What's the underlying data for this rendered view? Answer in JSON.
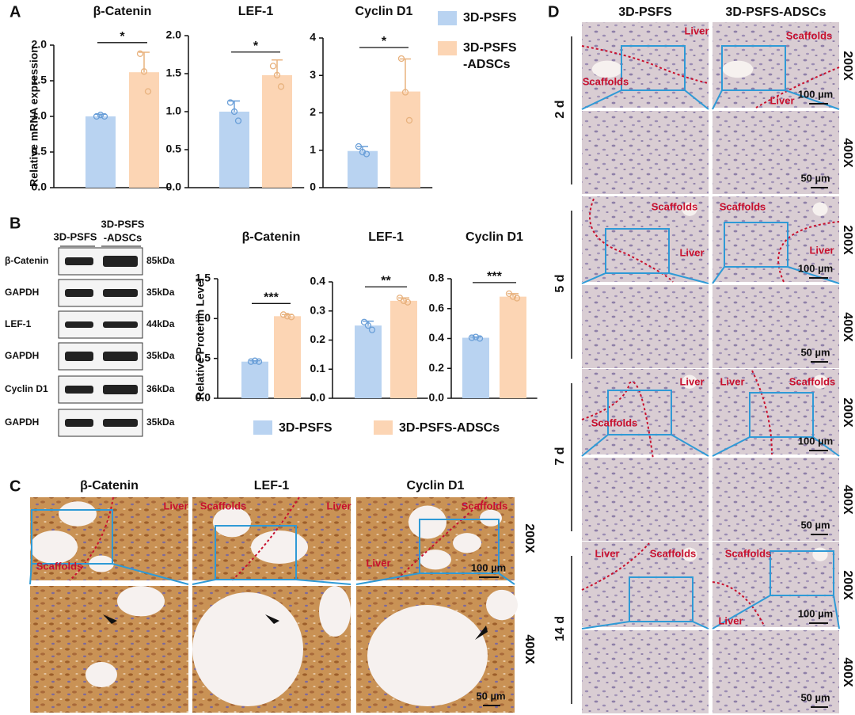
{
  "panel_labels": [
    "A",
    "B",
    "C",
    "D"
  ],
  "chart_data": [
    {
      "type": "bar",
      "title": "β-Catenin",
      "ylabel": "Relative mRNA expression",
      "values": [
        1.0,
        1.62
      ],
      "errors": [
        0.03,
        0.28
      ],
      "points": [
        [
          1.0,
          1.02,
          1.0
        ],
        [
          1.88,
          1.63,
          1.35
        ]
      ],
      "colors": [
        "#b9d3f1",
        "#fcd5b4"
      ],
      "point_colors": [
        "#6a9fd8",
        "#e8b27e"
      ],
      "ylim": [
        0,
        2.0
      ],
      "yticks": [
        {
          "value": 0,
          "label": "0.0"
        },
        0.5,
        {
          "value": 1,
          "label": "1.0"
        },
        1.5,
        {
          "value": 2,
          "label": "2.0"
        }
      ],
      "significance": "*"
    },
    {
      "type": "bar",
      "title": "LEF-1",
      "values": [
        1.0,
        1.48
      ],
      "errors": [
        0.14,
        0.2
      ],
      "points": [
        [
          1.12,
          1.0,
          0.88
        ],
        [
          1.6,
          1.48,
          1.33
        ]
      ],
      "colors": [
        "#b9d3f1",
        "#fcd5b4"
      ],
      "point_colors": [
        "#6a9fd8",
        "#e8b27e"
      ],
      "ylim": [
        0,
        2.0
      ],
      "yticks": [
        {
          "value": 0,
          "label": "0.0"
        },
        0.5,
        {
          "value": 1,
          "label": "1.0"
        },
        1.5,
        {
          "value": 2,
          "label": "2.0"
        }
      ],
      "significance": "*"
    },
    {
      "type": "bar",
      "title": "Cyclin D1",
      "values": [
        0.98,
        2.57
      ],
      "errors": [
        0.12,
        0.87
      ],
      "points": [
        [
          1.1,
          0.95,
          0.9
        ],
        [
          3.45,
          2.55,
          1.8
        ]
      ],
      "colors": [
        "#b9d3f1",
        "#fcd5b4"
      ],
      "point_colors": [
        "#6a9fd8",
        "#e8b27e"
      ],
      "ylim": [
        0,
        4
      ],
      "yticks": [
        0,
        1,
        2,
        3,
        4
      ],
      "significance": "*"
    },
    {
      "type": "bar",
      "title": "β-Catenin",
      "ylabel": "Relative Protenin Level",
      "values": [
        0.46,
        1.03
      ],
      "errors": [
        0.01,
        0.02
      ],
      "points": [
        [
          0.46,
          0.47,
          0.46
        ],
        [
          1.05,
          1.03,
          1.02
        ]
      ],
      "colors": [
        "#b9d3f1",
        "#fcd5b4"
      ],
      "point_colors": [
        "#6a9fd8",
        "#e8b27e"
      ],
      "ylim": [
        0,
        1.5
      ],
      "yticks": [
        {
          "value": 0,
          "label": "0.0"
        },
        0.5,
        {
          "value": 1,
          "label": "1.0"
        },
        1.5
      ],
      "significance": "***"
    },
    {
      "type": "bar",
      "title": "LEF-1",
      "values": [
        0.25,
        0.335
      ],
      "errors": [
        0.015,
        0.01
      ],
      "points": [
        [
          0.262,
          0.25,
          0.235
        ],
        [
          0.345,
          0.335,
          0.33
        ]
      ],
      "colors": [
        "#b9d3f1",
        "#fcd5b4"
      ],
      "point_colors": [
        "#6a9fd8",
        "#e8b27e"
      ],
      "ylim": [
        0,
        0.4
      ],
      "yticks": [
        {
          "value": 0,
          "label": "0.0"
        },
        0.1,
        0.2,
        0.3,
        0.4
      ],
      "significance": "**"
    },
    {
      "type": "bar",
      "title": "Cyclin D1",
      "values": [
        0.405,
        0.68
      ],
      "errors": [
        0.005,
        0.02
      ],
      "points": [
        [
          0.405,
          0.41,
          0.4
        ],
        [
          0.7,
          0.68,
          0.67
        ]
      ],
      "colors": [
        "#b9d3f1",
        "#fcd5b4"
      ],
      "point_colors": [
        "#6a9fd8",
        "#e8b27e"
      ],
      "ylim": [
        0,
        0.8
      ],
      "yticks": [
        {
          "value": 0,
          "label": "0.0"
        },
        0.2,
        0.4,
        0.6,
        0.8
      ],
      "significance": "***"
    }
  ],
  "legend_a": [
    {
      "name_lines": [
        "3D-PSFS"
      ],
      "color": "#b9d3f1"
    },
    {
      "name_lines": [
        "3D-PSFS",
        "-ADSCs"
      ],
      "color": "#fcd5b4"
    }
  ],
  "legend_b": [
    {
      "name": "3D-PSFS",
      "color": "#b9d3f1"
    },
    {
      "name": "3D-PSFS-ADSCs",
      "color": "#fcd5b4"
    }
  ],
  "western_blot": {
    "column_1": "3D-PSFS",
    "column_2_lines": [
      "3D-PSFS",
      "-ADSCs"
    ],
    "rows": [
      {
        "label": "β-Catenin",
        "size": "85kDa"
      },
      {
        "label": "GAPDH",
        "size": "35kDa"
      },
      {
        "label": "LEF-1",
        "size": "44kDa"
      },
      {
        "label": "GAPDH",
        "size": "35kDa"
      },
      {
        "label": "Cyclin D1",
        "size": "36kDa"
      },
      {
        "label": "GAPDH",
        "size": "35kDa"
      }
    ]
  },
  "panel_c": {
    "titles": [
      "β-Catenin",
      "LEF-1",
      "Cyclin D1"
    ],
    "magnifications": [
      "200X",
      "400X"
    ],
    "image_labels": [
      [
        "Liver",
        "Scaffolds"
      ],
      [
        "Scaffolds",
        "Liver"
      ],
      [
        "Scaffolds",
        "Liver"
      ]
    ],
    "scale_bars": [
      "100 µm",
      "50 µm"
    ]
  },
  "panel_d": {
    "columns": [
      "3D-PSFS",
      "3D-PSFS-ADSCs"
    ],
    "rows": [
      {
        "day": "2 d",
        "magnifications": [
          "200X",
          "400X"
        ],
        "labels": [
          "Liver",
          "Scaffolds",
          "Scaffolds",
          "Liver"
        ],
        "scale_bars": [
          "100 µm",
          "50 µm"
        ]
      },
      {
        "day": "5 d",
        "magnifications": [
          "200X",
          "400X"
        ],
        "labels": [
          "Scaffolds",
          "Liver",
          "Scaffolds",
          "Liver"
        ],
        "scale_bars": [
          "100 µm",
          "50 µm"
        ]
      },
      {
        "day": "7 d",
        "magnifications": [
          "200X",
          "400X"
        ],
        "labels": [
          "Liver",
          "Scaffolds",
          "Liver",
          "Scaffolds"
        ],
        "scale_bars": [
          "100 µm",
          "50 µm"
        ]
      },
      {
        "day": "14 d",
        "magnifications": [
          "200X",
          "400X"
        ],
        "labels": [
          "Liver",
          "Scaffolds",
          "Scaffolds",
          "Liver"
        ],
        "scale_bars": [
          "100 µm",
          "50 µm"
        ]
      }
    ]
  }
}
